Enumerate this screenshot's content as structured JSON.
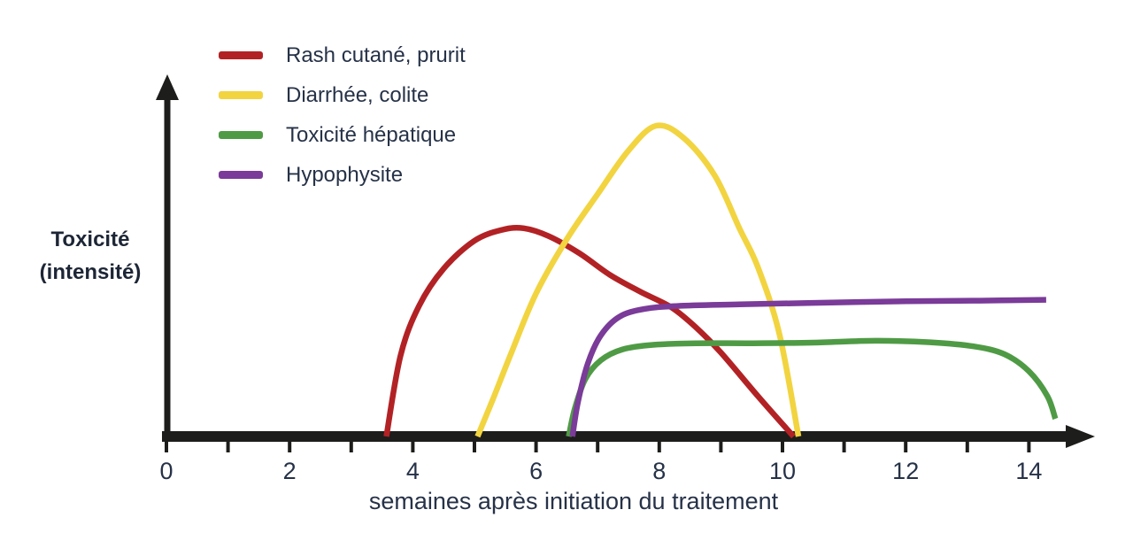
{
  "figure": {
    "background": "#ffffff",
    "y_axis_label_line1": "Toxicité",
    "y_axis_label_line2": "(intensité)",
    "x_axis_label": "semaines après initiation du traitement"
  },
  "legend": {
    "position": "top-left",
    "items": [
      {
        "label": "Rash cutané, prurit",
        "color": "#b22225"
      },
      {
        "label": "Diarrhée, colite",
        "color": "#f2d440"
      },
      {
        "label": "Toxicité hépatique",
        "color": "#4f9b45"
      },
      {
        "label": "Hypophysite",
        "color": "#7a3b99"
      }
    ]
  },
  "chart_data": {
    "type": "line",
    "title": "",
    "xlabel": "semaines après initiation du traitement",
    "ylabel": "Toxicité (intensité)",
    "xlim": [
      0,
      15.1
    ],
    "ylim": [
      0,
      1.05
    ],
    "grid": false,
    "axis_color": "#1d1d1b",
    "x_ticks_minor_every": 1,
    "x_ticks_labeled": [
      0,
      2,
      4,
      6,
      8,
      10,
      12,
      14
    ],
    "y_ticks": [],
    "y_scale_note": "intensity is qualitative, no y tick labels shown",
    "legend_position": "top-left",
    "series": [
      {
        "name": "Rash cutané, prurit",
        "color": "#b22225",
        "points": [
          [
            3.57,
            0
          ],
          [
            3.8,
            0.26
          ],
          [
            4.1,
            0.42
          ],
          [
            4.5,
            0.54
          ],
          [
            5.0,
            0.63
          ],
          [
            5.45,
            0.665
          ],
          [
            5.8,
            0.67
          ],
          [
            6.2,
            0.645
          ],
          [
            6.7,
            0.59
          ],
          [
            7.2,
            0.52
          ],
          [
            7.7,
            0.465
          ],
          [
            8.2,
            0.415
          ],
          [
            8.6,
            0.35
          ],
          [
            9.0,
            0.27
          ],
          [
            9.6,
            0.13
          ],
          [
            10.18,
            0
          ]
        ]
      },
      {
        "name": "Diarrhée, colite",
        "color": "#f2d440",
        "points": [
          [
            5.05,
            0
          ],
          [
            5.3,
            0.12
          ],
          [
            5.6,
            0.27
          ],
          [
            6.0,
            0.46
          ],
          [
            6.5,
            0.635
          ],
          [
            7.0,
            0.78
          ],
          [
            7.5,
            0.92
          ],
          [
            7.95,
            1.0
          ],
          [
            8.4,
            0.96
          ],
          [
            8.9,
            0.84
          ],
          [
            9.3,
            0.67
          ],
          [
            9.6,
            0.545
          ],
          [
            9.95,
            0.33
          ],
          [
            10.26,
            0
          ]
        ]
      },
      {
        "name": "Toxicité hépatique",
        "color": "#4f9b45",
        "points": [
          [
            6.53,
            0
          ],
          [
            6.63,
            0.09
          ],
          [
            6.8,
            0.185
          ],
          [
            7.05,
            0.245
          ],
          [
            7.4,
            0.28
          ],
          [
            7.9,
            0.295
          ],
          [
            8.6,
            0.3
          ],
          [
            9.5,
            0.3
          ],
          [
            10.5,
            0.302
          ],
          [
            11.5,
            0.308
          ],
          [
            12.4,
            0.303
          ],
          [
            13.1,
            0.29
          ],
          [
            13.6,
            0.265
          ],
          [
            14.0,
            0.21
          ],
          [
            14.3,
            0.13
          ],
          [
            14.43,
            0.057
          ]
        ]
      },
      {
        "name": "Hypophysite",
        "color": "#7a3b99",
        "points": [
          [
            6.59,
            0
          ],
          [
            6.68,
            0.11
          ],
          [
            6.84,
            0.235
          ],
          [
            7.05,
            0.325
          ],
          [
            7.35,
            0.385
          ],
          [
            7.75,
            0.41
          ],
          [
            8.3,
            0.42
          ],
          [
            9.3,
            0.425
          ],
          [
            10.5,
            0.43
          ],
          [
            12.0,
            0.435
          ],
          [
            13.2,
            0.437
          ],
          [
            14.28,
            0.44
          ]
        ]
      }
    ]
  }
}
